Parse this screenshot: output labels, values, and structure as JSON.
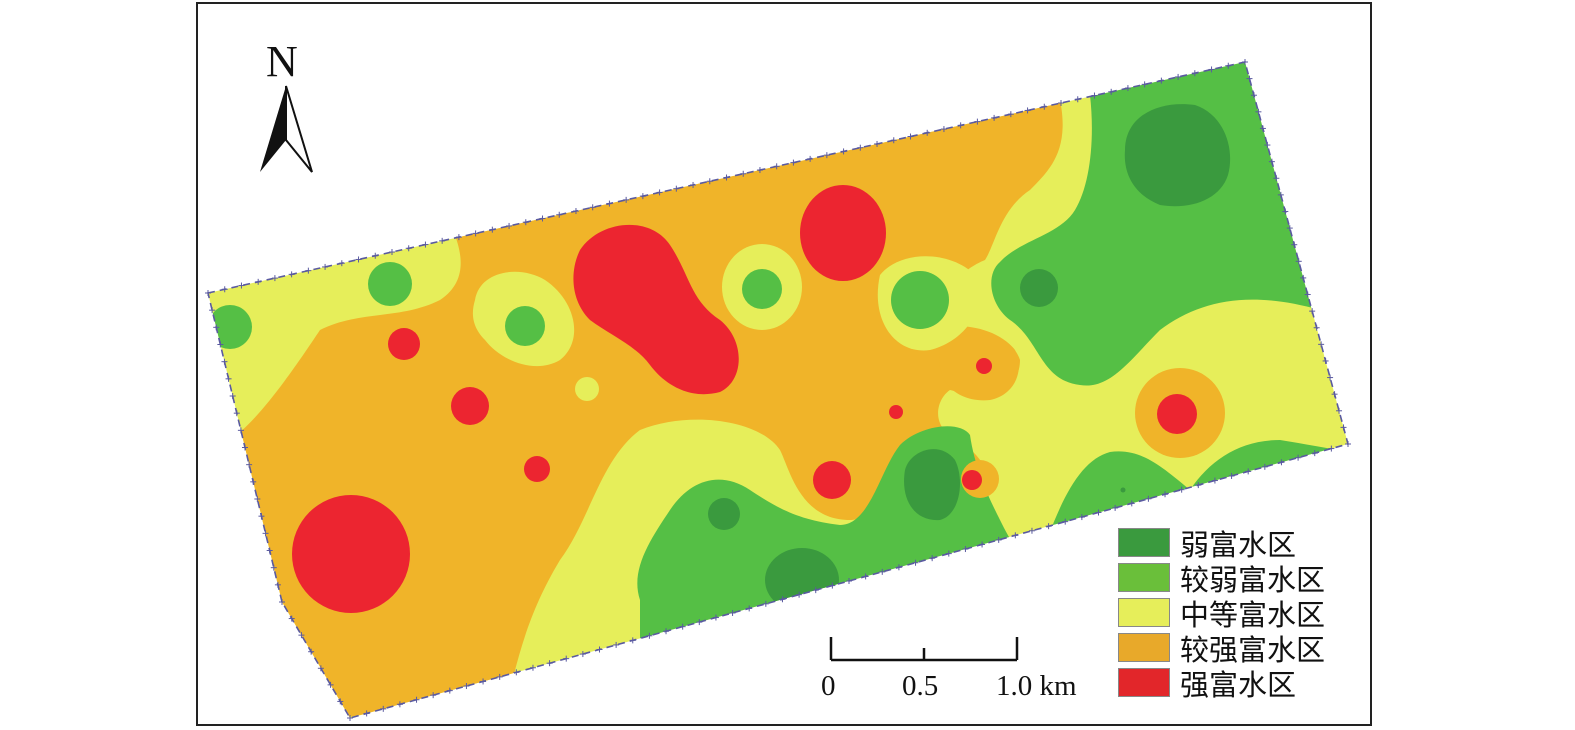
{
  "north_arrow": {
    "letter": "N",
    "icon": "north-arrow-icon"
  },
  "legend": {
    "items": [
      {
        "label": "弱富水区",
        "color": "#3a9a3e"
      },
      {
        "label": "较弱富水区",
        "color": "#6abf3a"
      },
      {
        "label": "中等富水区",
        "color": "#e6ee5a"
      },
      {
        "label": "较强富水区",
        "color": "#e8a92a"
      },
      {
        "label": "强富水区",
        "color": "#e2262a"
      }
    ]
  },
  "scale_bar": {
    "ticks": [
      "0",
      "0.5",
      "1.0 km"
    ]
  },
  "colors": {
    "weak": "#3a9a3e",
    "weaker": "#55bf45",
    "medium": "#e6ee5a",
    "stronger": "#f0b429",
    "strong": "#ec2530",
    "boundary": "#5a5aa0"
  }
}
